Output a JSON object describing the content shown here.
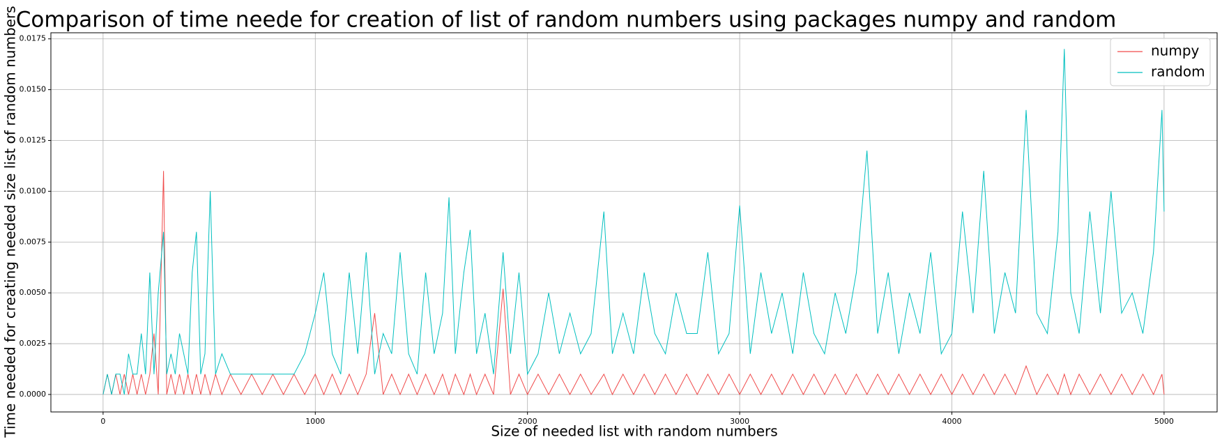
{
  "chart_data": {
    "type": "line",
    "title": "Comparison of time neede for creation of list of random numbers using packages numpy and random",
    "x_label": "Size of needed list with random numbers",
    "y_label": "Time needed for creating needed size list of random numbers",
    "x": [
      0,
      20,
      40,
      60,
      80,
      100,
      120,
      140,
      160,
      180,
      200,
      220,
      240,
      260,
      285,
      300,
      320,
      340,
      360,
      380,
      400,
      420,
      440,
      460,
      480,
      505,
      530,
      560,
      600,
      650,
      700,
      750,
      800,
      850,
      900,
      950,
      1000,
      1040,
      1080,
      1120,
      1160,
      1200,
      1240,
      1280,
      1320,
      1360,
      1400,
      1440,
      1480,
      1520,
      1560,
      1600,
      1630,
      1660,
      1700,
      1730,
      1760,
      1800,
      1840,
      1885,
      1920,
      1960,
      2000,
      2050,
      2100,
      2150,
      2200,
      2250,
      2300,
      2360,
      2400,
      2450,
      2500,
      2550,
      2600,
      2650,
      2700,
      2750,
      2800,
      2850,
      2900,
      2950,
      3000,
      3050,
      3100,
      3150,
      3200,
      3250,
      3300,
      3350,
      3400,
      3450,
      3500,
      3550,
      3600,
      3650,
      3700,
      3750,
      3800,
      3850,
      3900,
      3950,
      4000,
      4050,
      4100,
      4150,
      4200,
      4250,
      4300,
      4350,
      4400,
      4450,
      4500,
      4530,
      4560,
      4600,
      4650,
      4700,
      4750,
      4800,
      4850,
      4900,
      4950,
      4990,
      5000
    ],
    "series": [
      {
        "name": "numpy",
        "color": "#f04a4a",
        "values": [
          0,
          0.001,
          0,
          0.001,
          0,
          0.001,
          0,
          0.001,
          0,
          0.001,
          0,
          0.001,
          0.003,
          0,
          0.011,
          0,
          0.001,
          0,
          0.001,
          0,
          0.001,
          0,
          0.001,
          0,
          0.001,
          0,
          0.001,
          0,
          0.001,
          0,
          0.001,
          0,
          0.001,
          0,
          0.001,
          0,
          0.001,
          0,
          0.001,
          0,
          0.001,
          0,
          0.001,
          0.004,
          0,
          0.001,
          0,
          0.001,
          0,
          0.001,
          0,
          0.001,
          0,
          0.001,
          0,
          0.001,
          0,
          0.001,
          0,
          0.0052,
          0,
          0.001,
          0,
          0.001,
          0,
          0.001,
          0,
          0.001,
          0,
          0.001,
          0,
          0.001,
          0,
          0.001,
          0,
          0.001,
          0,
          0.001,
          0,
          0.001,
          0,
          0.001,
          0,
          0.001,
          0,
          0.001,
          0,
          0.001,
          0,
          0.001,
          0,
          0.001,
          0,
          0.001,
          0,
          0.001,
          0,
          0.001,
          0,
          0.001,
          0,
          0.001,
          0,
          0.001,
          0,
          0.001,
          0,
          0.001,
          0,
          0.0014,
          0,
          0.001,
          0,
          0.001,
          0,
          0.001,
          0,
          0.001,
          0,
          0.001,
          0,
          0.001,
          0,
          0.001,
          0
        ]
      },
      {
        "name": "random",
        "color": "#00bfbf",
        "values": [
          0,
          0.001,
          0,
          0.001,
          0.001,
          0,
          0.002,
          0.001,
          0.001,
          0.003,
          0.001,
          0.006,
          0.001,
          0.005,
          0.008,
          0.001,
          0.002,
          0.001,
          0.003,
          0.002,
          0.001,
          0.006,
          0.008,
          0.001,
          0.002,
          0.01,
          0.001,
          0.002,
          0.001,
          0.001,
          0.001,
          0.001,
          0.001,
          0.001,
          0.001,
          0.002,
          0.004,
          0.006,
          0.002,
          0.001,
          0.006,
          0.002,
          0.007,
          0.001,
          0.003,
          0.002,
          0.007,
          0.002,
          0.001,
          0.006,
          0.002,
          0.004,
          0.0097,
          0.002,
          0.006,
          0.0081,
          0.002,
          0.004,
          0.001,
          0.007,
          0.002,
          0.006,
          0.001,
          0.002,
          0.005,
          0.002,
          0.004,
          0.002,
          0.003,
          0.009,
          0.002,
          0.004,
          0.002,
          0.006,
          0.003,
          0.002,
          0.005,
          0.003,
          0.003,
          0.007,
          0.002,
          0.003,
          0.0093,
          0.002,
          0.006,
          0.003,
          0.005,
          0.002,
          0.006,
          0.003,
          0.002,
          0.005,
          0.003,
          0.006,
          0.012,
          0.003,
          0.006,
          0.002,
          0.005,
          0.003,
          0.007,
          0.002,
          0.003,
          0.009,
          0.004,
          0.011,
          0.003,
          0.006,
          0.004,
          0.014,
          0.004,
          0.003,
          0.008,
          0.017,
          0.005,
          0.003,
          0.009,
          0.004,
          0.01,
          0.004,
          0.005,
          0.003,
          0.007,
          0.014,
          0.009
        ]
      }
    ],
    "xlim": [
      -246,
      5250
    ],
    "ylim": [
      -0.00086,
      0.0178
    ],
    "xticks": [
      0,
      1000,
      2000,
      3000,
      4000,
      5000
    ],
    "yticks": [
      {
        "value": 0,
        "label": "0.0000"
      },
      {
        "value": 0.0025,
        "label": "0.0025"
      },
      {
        "value": 0.005,
        "label": "0.0050"
      },
      {
        "value": 0.0075,
        "label": "0.0075"
      },
      {
        "value": 0.01,
        "label": "0.0100"
      },
      {
        "value": 0.0125,
        "label": "0.0125"
      },
      {
        "value": 0.015,
        "label": "0.0150"
      },
      {
        "value": 0.0175,
        "label": "0.0175"
      }
    ],
    "grid": true,
    "legend": "upper right"
  }
}
